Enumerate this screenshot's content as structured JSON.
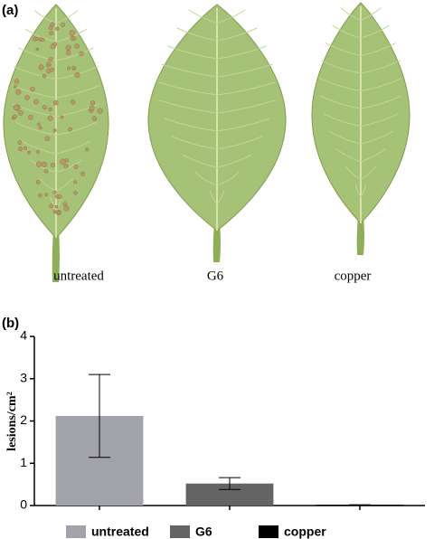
{
  "panel_a": {
    "label": "(a)",
    "leaves": [
      "untreated",
      "G6",
      "copper"
    ]
  },
  "chart_data": {
    "type": "bar",
    "label": "(b)",
    "y_label": "lesions/cm²",
    "series": [
      {
        "name": "untreated",
        "color": "#a2a2aa",
        "values": [
          2.12
        ],
        "errors": [
          0.98
        ]
      },
      {
        "name": "G6",
        "color": "#646464",
        "values": [
          0.52
        ],
        "errors": [
          0.14
        ]
      },
      {
        "name": "copper",
        "color": "#000000",
        "values": [
          0.02
        ],
        "errors": [
          0
        ]
      }
    ],
    "ylim": [
      0,
      4
    ],
    "yticks": [
      0,
      1,
      2,
      3,
      4
    ],
    "legend": "bottom"
  }
}
